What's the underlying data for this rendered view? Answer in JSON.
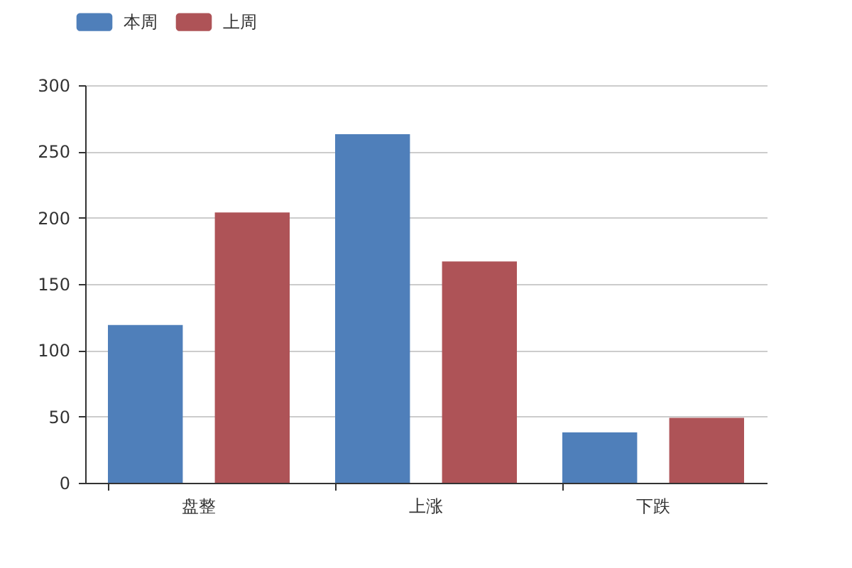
{
  "chart_data": {
    "type": "bar",
    "categories": [
      "盘整",
      "上涨",
      "下跌"
    ],
    "series": [
      {
        "name": "本周",
        "color": "#4f7fba",
        "values": [
          119,
          263,
          38
        ]
      },
      {
        "name": "上周",
        "color": "#ae5357",
        "values": [
          204,
          167,
          49
        ]
      }
    ],
    "ylim": [
      0,
      300
    ],
    "yticks": [
      0,
      50,
      100,
      150,
      200,
      250,
      300
    ],
    "grid": "y",
    "legend": "top"
  }
}
